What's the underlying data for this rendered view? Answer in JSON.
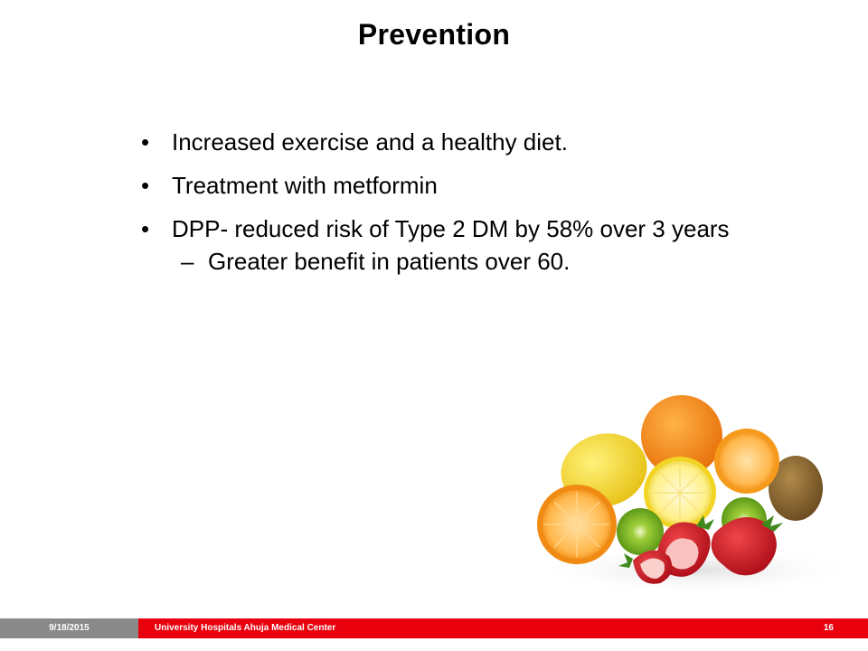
{
  "slide": {
    "title": "Prevention",
    "bullets": [
      "Increased exercise and a healthy diet.",
      "Treatment with metformin",
      "DPP- reduced risk of Type 2 DM by 58% over 3 years"
    ],
    "sub_bullet": "Greater benefit in patients over 60.",
    "bullet_glyph": "•",
    "sub_bullet_glyph": "–",
    "image": "fruit-image"
  },
  "footer": {
    "date": "9/18/2015",
    "organization": "University Hospitals Ahuja Medical Center",
    "page_number": "16",
    "colors": {
      "date_bg": "#8a8a8a",
      "bar_bg": "#e8000d"
    }
  }
}
